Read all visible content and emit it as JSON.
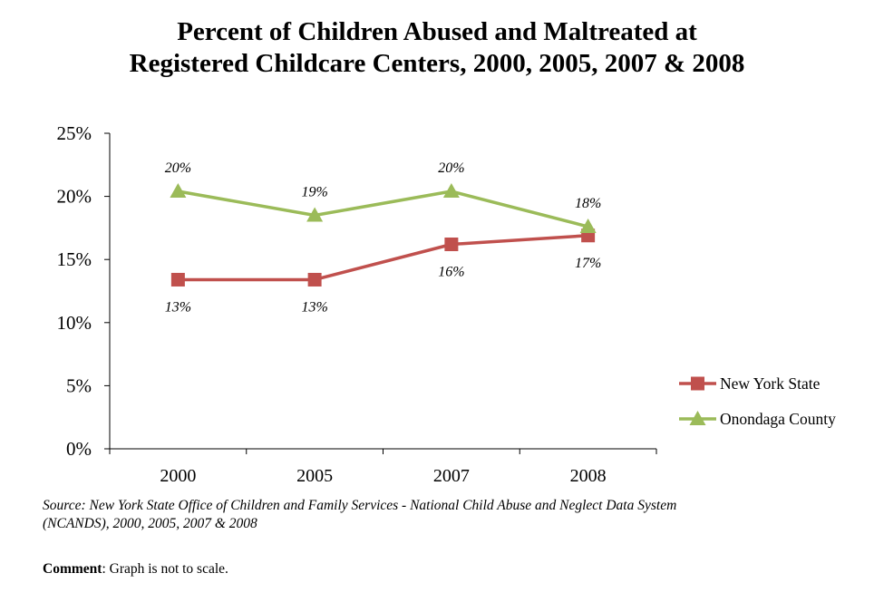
{
  "title_line1": "Percent of Children Abused and Maltreated at",
  "title_line2": "Registered Childcare Centers, 2000, 2005, 2007 & 2008",
  "source": "Source: New York State Office of Children and Family Services - National Child Abuse and Neglect Data System (NCANDS), 2000, 2005, 2007 & 2008",
  "comment_label": "Comment",
  "comment_text": ": Graph is not to scale.",
  "chart_data": {
    "type": "line",
    "title": "Percent of Children Abused and Maltreated at Registered Childcare Centers, 2000, 2005, 2007 & 2008",
    "categories": [
      "2000",
      "2005",
      "2007",
      "2008"
    ],
    "ylim": [
      0,
      25
    ],
    "yticks": [
      "0%",
      "5%",
      "10%",
      "15%",
      "20%",
      "25%"
    ],
    "grid": false,
    "legend_position": "right",
    "series": [
      {
        "name": "New York State",
        "values": [
          13.4,
          13.4,
          16.2,
          16.9
        ],
        "labels": [
          "13%",
          "13%",
          "16%",
          "17%"
        ],
        "label_position": "below",
        "color": "#C0504D",
        "marker": "square"
      },
      {
        "name": "Onondaga County",
        "values": [
          20.4,
          18.5,
          20.4,
          17.6
        ],
        "labels": [
          "20%",
          "19%",
          "20%",
          "18%"
        ],
        "label_position": "above",
        "color": "#9BBB59",
        "marker": "triangle"
      }
    ]
  }
}
